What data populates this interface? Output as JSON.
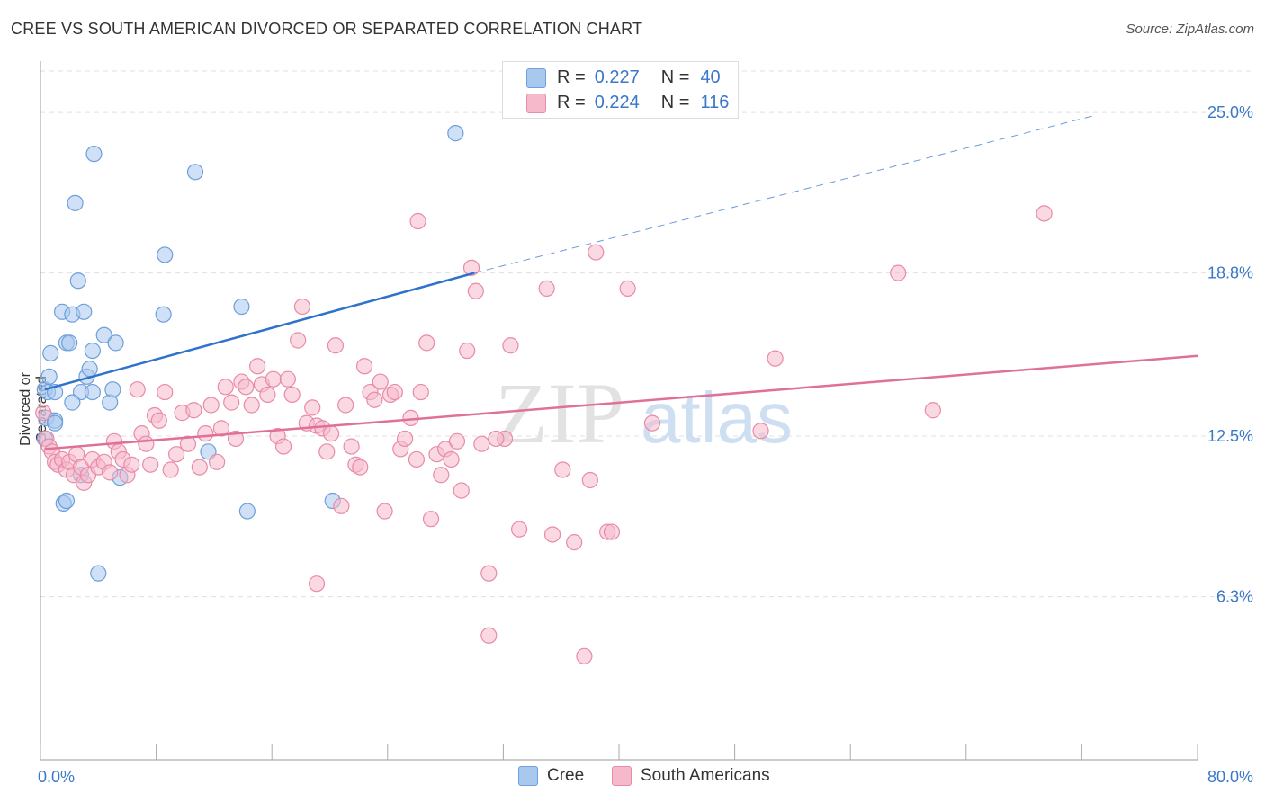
{
  "title": "CREE VS SOUTH AMERICAN DIVORCED OR SEPARATED CORRELATION CHART",
  "source": "Source: ZipAtlas.com",
  "legend_top": {
    "rows": [
      {
        "r_label": "R =",
        "r_value": "0.227",
        "n_label": "N =",
        "n_value": "40"
      },
      {
        "r_label": "R =",
        "r_value": "0.224",
        "n_label": "N =",
        "n_value": "116"
      }
    ]
  },
  "colors": {
    "cree_fill": "#a9c8f0",
    "cree_stroke": "#6d9fd9",
    "cree_line": "#2f72cc",
    "sa_fill": "#f6b9cc",
    "sa_stroke": "#e88aa8",
    "sa_line": "#e0709a",
    "tick_label": "#3a78c9",
    "grid": "#e0e0e0"
  },
  "chart_data": {
    "type": "scatter",
    "title": "CREE VS SOUTH AMERICAN DIVORCED OR SEPARATED CORRELATION CHART",
    "xlabel": "",
    "ylabel": "Divorced or Separated",
    "xlim": [
      0,
      80
    ],
    "ylim": [
      0,
      26.6
    ],
    "x_tick_labels": [
      "0.0%",
      "80.0%"
    ],
    "y_ticks": [
      6.3,
      12.5,
      18.8,
      25.0
    ],
    "y_tick_labels": [
      "6.3%",
      "12.5%",
      "18.8%",
      "25.0%"
    ],
    "grid": "horizontal dashed",
    "legend_position": "top-center",
    "watermark": "ZIPatlas",
    "series": [
      {
        "name": "Cree",
        "points": [
          [
            0.3,
            14.3
          ],
          [
            0.6,
            14.8
          ],
          [
            0.5,
            14.2
          ],
          [
            0.4,
            13.2
          ],
          [
            0.7,
            15.7
          ],
          [
            0.3,
            12.4
          ],
          [
            1.0,
            13.1
          ],
          [
            1.0,
            14.2
          ],
          [
            1.5,
            17.3
          ],
          [
            1.8,
            16.1
          ],
          [
            2.0,
            16.1
          ],
          [
            2.2,
            17.2
          ],
          [
            2.4,
            21.5
          ],
          [
            2.6,
            18.5
          ],
          [
            2.8,
            14.2
          ],
          [
            3.0,
            17.3
          ],
          [
            3.2,
            14.8
          ],
          [
            3.4,
            15.1
          ],
          [
            3.6,
            14.2
          ],
          [
            3.6,
            15.8
          ],
          [
            3.7,
            23.4
          ],
          [
            4.4,
            16.4
          ],
          [
            4.8,
            13.8
          ],
          [
            5.0,
            14.3
          ],
          [
            5.2,
            16.1
          ],
          [
            5.5,
            10.9
          ],
          [
            8.5,
            17.2
          ],
          [
            8.6,
            19.5
          ],
          [
            10.7,
            22.7
          ],
          [
            11.6,
            11.9
          ],
          [
            13.9,
            17.5
          ],
          [
            14.3,
            9.6
          ],
          [
            20.2,
            10.0
          ],
          [
            28.7,
            24.2
          ],
          [
            1.6,
            9.9
          ],
          [
            1.8,
            10.0
          ],
          [
            2.8,
            11.0
          ],
          [
            4.0,
            7.2
          ],
          [
            2.2,
            13.8
          ],
          [
            1.0,
            13.0
          ]
        ]
      },
      {
        "name": "South Americans",
        "points": [
          [
            0.2,
            13.4
          ],
          [
            0.4,
            12.4
          ],
          [
            0.6,
            12.1
          ],
          [
            0.8,
            11.9
          ],
          [
            1.0,
            11.5
          ],
          [
            1.2,
            11.4
          ],
          [
            1.5,
            11.6
          ],
          [
            1.8,
            11.2
          ],
          [
            2.0,
            11.5
          ],
          [
            2.3,
            11.0
          ],
          [
            2.5,
            11.8
          ],
          [
            2.8,
            11.3
          ],
          [
            3.0,
            10.7
          ],
          [
            3.3,
            11.0
          ],
          [
            3.6,
            11.6
          ],
          [
            4.0,
            11.3
          ],
          [
            4.4,
            11.5
          ],
          [
            4.8,
            11.1
          ],
          [
            5.1,
            12.3
          ],
          [
            5.4,
            11.9
          ],
          [
            5.7,
            11.6
          ],
          [
            6.0,
            11.0
          ],
          [
            6.3,
            11.4
          ],
          [
            6.7,
            14.3
          ],
          [
            7.0,
            12.6
          ],
          [
            7.3,
            12.2
          ],
          [
            7.6,
            11.4
          ],
          [
            7.9,
            13.3
          ],
          [
            8.2,
            13.1
          ],
          [
            8.6,
            14.2
          ],
          [
            9.0,
            11.2
          ],
          [
            9.4,
            11.8
          ],
          [
            9.8,
            13.4
          ],
          [
            10.2,
            12.2
          ],
          [
            10.6,
            13.5
          ],
          [
            11.0,
            11.3
          ],
          [
            11.4,
            12.6
          ],
          [
            11.8,
            13.7
          ],
          [
            12.2,
            11.5
          ],
          [
            12.5,
            12.8
          ],
          [
            12.8,
            14.4
          ],
          [
            13.2,
            13.8
          ],
          [
            13.5,
            12.4
          ],
          [
            13.9,
            14.6
          ],
          [
            14.2,
            14.4
          ],
          [
            14.6,
            13.7
          ],
          [
            15.0,
            15.2
          ],
          [
            15.3,
            14.5
          ],
          [
            15.7,
            14.1
          ],
          [
            16.1,
            14.7
          ],
          [
            16.4,
            12.5
          ],
          [
            16.8,
            12.1
          ],
          [
            17.1,
            14.7
          ],
          [
            17.4,
            14.1
          ],
          [
            17.8,
            16.2
          ],
          [
            18.1,
            17.5
          ],
          [
            18.4,
            13.0
          ],
          [
            18.8,
            13.6
          ],
          [
            19.1,
            12.9
          ],
          [
            19.5,
            12.8
          ],
          [
            19.8,
            11.9
          ],
          [
            20.1,
            12.6
          ],
          [
            20.4,
            16.0
          ],
          [
            20.8,
            9.8
          ],
          [
            21.1,
            13.7
          ],
          [
            21.5,
            12.1
          ],
          [
            21.8,
            11.4
          ],
          [
            22.1,
            11.3
          ],
          [
            22.4,
            15.2
          ],
          [
            22.8,
            14.2
          ],
          [
            23.1,
            13.9
          ],
          [
            23.5,
            14.6
          ],
          [
            23.8,
            9.6
          ],
          [
            24.2,
            14.1
          ],
          [
            24.5,
            14.2
          ],
          [
            24.9,
            12.0
          ],
          [
            25.2,
            12.4
          ],
          [
            25.6,
            13.2
          ],
          [
            26.0,
            11.6
          ],
          [
            26.3,
            14.2
          ],
          [
            26.7,
            16.1
          ],
          [
            27.0,
            9.3
          ],
          [
            27.4,
            11.8
          ],
          [
            27.7,
            11.0
          ],
          [
            28.0,
            12.0
          ],
          [
            28.4,
            11.6
          ],
          [
            28.8,
            12.3
          ],
          [
            29.1,
            10.4
          ],
          [
            29.5,
            15.8
          ],
          [
            29.8,
            19.0
          ],
          [
            30.1,
            18.1
          ],
          [
            30.5,
            12.2
          ],
          [
            31.0,
            7.2
          ],
          [
            32.1,
            12.4
          ],
          [
            32.5,
            16.0
          ],
          [
            33.1,
            8.9
          ],
          [
            35.0,
            18.2
          ],
          [
            35.4,
            8.7
          ],
          [
            36.1,
            11.2
          ],
          [
            36.9,
            8.4
          ],
          [
            37.6,
            4.0
          ],
          [
            38.0,
            10.8
          ],
          [
            38.4,
            19.6
          ],
          [
            39.2,
            8.8
          ],
          [
            40.6,
            18.2
          ],
          [
            42.3,
            13.0
          ],
          [
            49.8,
            12.7
          ],
          [
            50.8,
            15.5
          ],
          [
            59.3,
            18.8
          ],
          [
            61.7,
            13.5
          ],
          [
            69.4,
            21.1
          ],
          [
            19.1,
            6.8
          ],
          [
            31.0,
            4.8
          ],
          [
            26.1,
            20.8
          ],
          [
            31.5,
            12.4
          ],
          [
            39.5,
            8.8
          ]
        ]
      }
    ],
    "trend_lines": [
      {
        "name": "Cree",
        "x": [
          0.3,
          30.0
        ],
        "y": [
          14.3,
          18.8
        ],
        "extended_to": [
          73.0,
          24.9
        ]
      },
      {
        "name": "South Americans",
        "x": [
          0.3,
          80.0
        ],
        "y": [
          12.0,
          15.6
        ]
      }
    ]
  },
  "bottom_legend": [
    "Cree",
    "South Americans"
  ]
}
